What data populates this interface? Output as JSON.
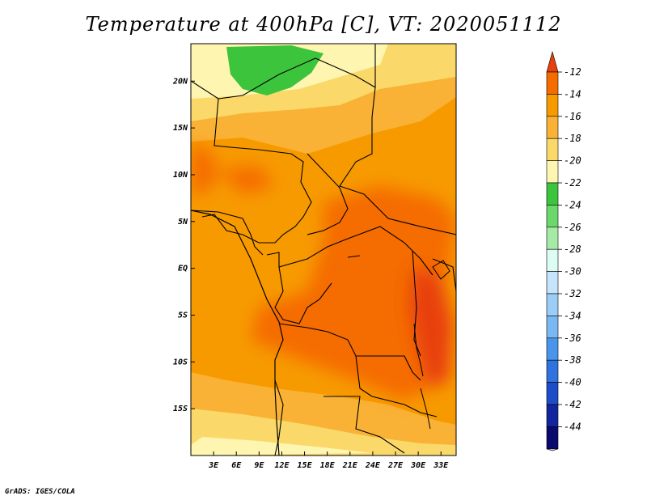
{
  "title": "Temperature at 400hPa [C], VT: 2020051112",
  "footer": "GrADS: IGES/COLA",
  "map": {
    "lat_labels": [
      "20N",
      "15N",
      "10N",
      "5N",
      "EQ",
      "5S",
      "10S",
      "15S"
    ],
    "lon_labels": [
      "3E",
      "6E",
      "9E",
      "12E",
      "15E",
      "18E",
      "21E",
      "24E",
      "27E",
      "30E",
      "33E"
    ],
    "lon_range": [
      0,
      35
    ],
    "lat_range": [
      -20,
      24
    ]
  },
  "colorbar": {
    "unit": "C",
    "levels": [
      "-12",
      "-14",
      "-16",
      "-18",
      "-20",
      "-22",
      "-24",
      "-26",
      "-28",
      "-30",
      "-32",
      "-34",
      "-36",
      "-38",
      "-40",
      "-42",
      "-44"
    ],
    "colors": [
      "#e8400d",
      "#f56c00",
      "#f79a00",
      "#f9b235",
      "#fbd86a",
      "#fef5b0",
      "#3cc43c",
      "#6ad86a",
      "#a5eaa5",
      "#dcfcf4",
      "#c6e4fb",
      "#9ccdf6",
      "#7ab8f3",
      "#4a95ec",
      "#2f73de",
      "#1c4cc8",
      "#12259c",
      "#0a0a6e",
      "#dcdcf4"
    ]
  }
}
